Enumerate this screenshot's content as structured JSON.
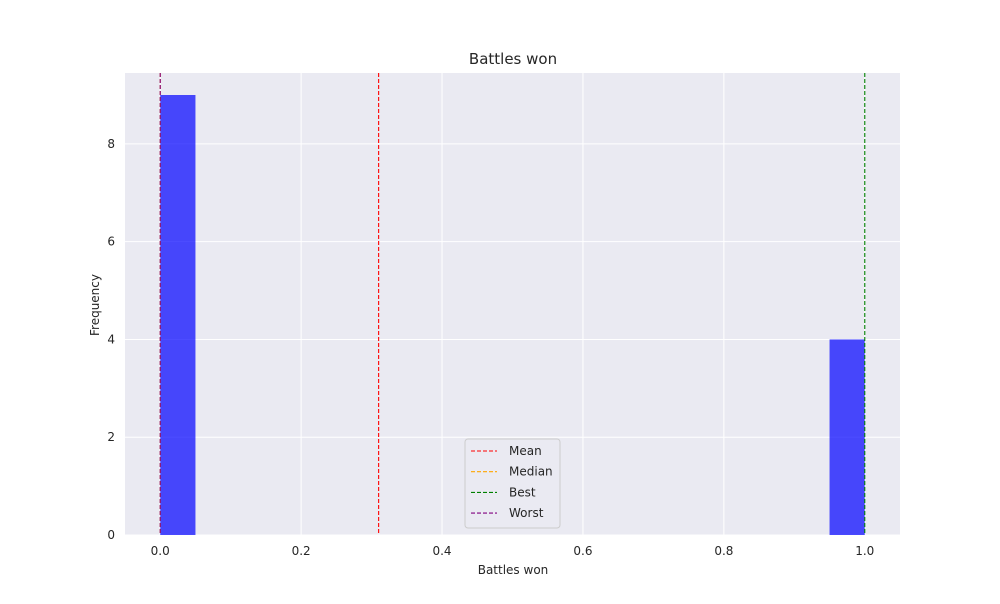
{
  "chart_data": {
    "type": "bar",
    "title": "Battles won",
    "xlabel": "Battles won",
    "ylabel": "Frequency",
    "xlim": [
      -0.05,
      1.05
    ],
    "ylim": [
      0,
      9.45
    ],
    "xticks": [
      0.0,
      0.2,
      0.4,
      0.6,
      0.8,
      1.0
    ],
    "xtick_labels": [
      "0.0",
      "0.2",
      "0.4",
      "0.6",
      "0.8",
      "1.0"
    ],
    "yticks": [
      0,
      2,
      4,
      6,
      8
    ],
    "ytick_labels": [
      "0",
      "2",
      "4",
      "6",
      "8"
    ],
    "bins": [
      {
        "start": 0.0,
        "end": 0.05,
        "count": 9
      },
      {
        "start": 0.95,
        "end": 1.0,
        "count": 4
      }
    ],
    "bar_color": "#0000ff",
    "vlines": [
      {
        "name": "Mean",
        "x": 0.31,
        "color": "#ff0000"
      },
      {
        "name": "Median",
        "x": 0.0,
        "color": "#ffa500"
      },
      {
        "name": "Best",
        "x": 1.0,
        "color": "#008000"
      },
      {
        "name": "Worst",
        "x": 0.0,
        "color": "#800080"
      }
    ],
    "legend_placement": "bottom-center",
    "grid": true,
    "background": "#eaeaf2"
  }
}
